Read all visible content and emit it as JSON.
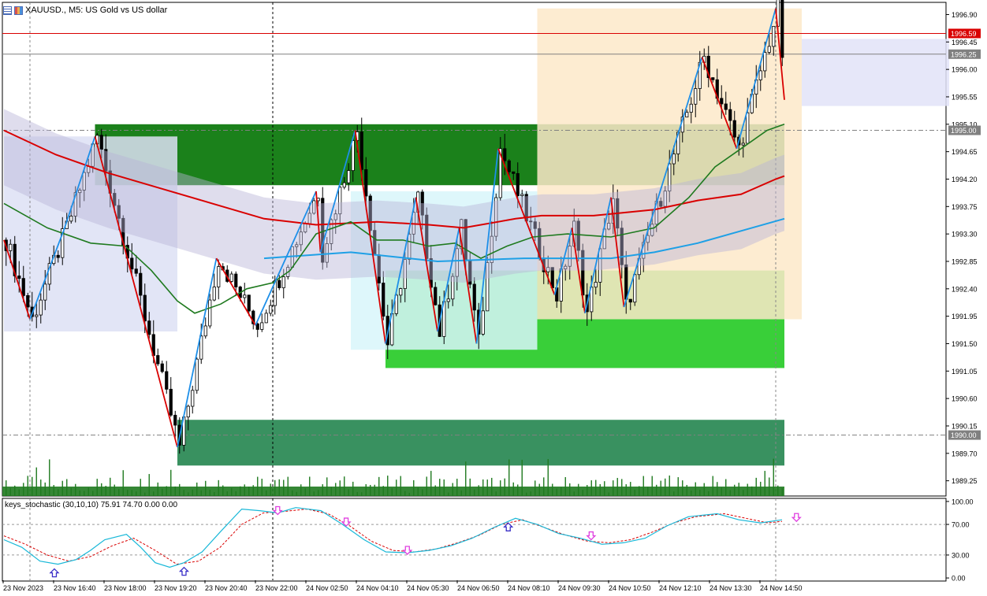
{
  "window": {
    "title": "XAUUSD., M5:  US Gold vs US dollar",
    "icons": [
      "chart-menu-icon",
      "indicators-icon"
    ]
  },
  "indicator": {
    "label": "keys_stochastic (30,10,10) 75.91 74.70 0.00 0.00"
  },
  "colors": {
    "ma_fast": "#1f7a1f",
    "ma_slow": "#d90000",
    "zigzag_up": "#1e8fe8",
    "zigzag_down": "#d90000",
    "stoch_main": "#19b8d8",
    "stoch_signal": "#d90000",
    "signal_up": "#3a2fc8",
    "signal_down": "#e040e0",
    "bid_line": "#d90000",
    "volume": "#1f7a1f"
  },
  "chart_data": [
    {
      "type": "candlestick",
      "symbol": "XAUUSD.",
      "timeframe": "M5",
      "ylim": [
        1989.0,
        1997.1
      ],
      "y_ticks": [
        "1996.90",
        "1996.45",
        "1996.00",
        "1995.55",
        "1995.10",
        "1994.65",
        "1994.20",
        "1993.75",
        "1993.30",
        "1992.85",
        "1992.40",
        "1991.95",
        "1991.50",
        "1991.05",
        "1990.60",
        "1990.15",
        "1989.70",
        "1989.25"
      ],
      "price_labels": [
        {
          "value": 1996.59,
          "text": "1996.59",
          "kind": "bid"
        },
        {
          "value": 1996.25,
          "text": "1996.25",
          "kind": "ask"
        },
        {
          "value": 1995.0,
          "text": "1995.00",
          "kind": "level"
        },
        {
          "value": 1990.0,
          "text": "1990.00",
          "kind": "level"
        }
      ],
      "x_labels": [
        "23 Nov 2023",
        "23 Nov 16:40",
        "23 Nov 18:00",
        "23 Nov 19:20",
        "23 Nov 20:40",
        "23 Nov 22:00",
        "24 Nov 02:50",
        "24 Nov 04:10",
        "24 Nov 05:30",
        "24 Nov 06:50",
        "24 Nov 08:10",
        "24 Nov 09:30",
        "24 Nov 10:50",
        "24 Nov 12:10",
        "24 Nov 13:30",
        "24 Nov 14:50"
      ],
      "bars": 180,
      "zigzag": [
        {
          "bar": 0,
          "price": 1993.2
        },
        {
          "bar": 6,
          "price": 1991.9
        },
        {
          "bar": 14,
          "price": 1993.4
        },
        {
          "bar": 21,
          "price": 1994.9
        },
        {
          "bar": 40,
          "price": 1989.8
        },
        {
          "bar": 49,
          "price": 1992.9
        },
        {
          "bar": 58,
          "price": 1991.8
        },
        {
          "bar": 72,
          "price": 1994.0
        },
        {
          "bar": 73,
          "price": 1993.0
        },
        {
          "bar": 81,
          "price": 1995.0
        },
        {
          "bar": 88,
          "price": 1991.5
        },
        {
          "bar": 95,
          "price": 1993.9
        },
        {
          "bar": 100,
          "price": 1991.7
        },
        {
          "bar": 105,
          "price": 1993.4
        },
        {
          "bar": 109,
          "price": 1991.5
        },
        {
          "bar": 114,
          "price": 1994.7
        },
        {
          "bar": 127,
          "price": 1992.3
        },
        {
          "bar": 131,
          "price": 1993.4
        },
        {
          "bar": 134,
          "price": 1992.0
        },
        {
          "bar": 140,
          "price": 1993.9
        },
        {
          "bar": 143,
          "price": 1992.1
        },
        {
          "bar": 161,
          "price": 1996.2
        },
        {
          "bar": 169,
          "price": 1994.7
        },
        {
          "bar": 178,
          "price": 1997.0
        },
        {
          "bar": 180,
          "price": 1995.5
        }
      ],
      "ma_fast": [
        [
          0,
          1993.8
        ],
        [
          10,
          1993.4
        ],
        [
          20,
          1993.15
        ],
        [
          28,
          1993.1
        ],
        [
          34,
          1992.7
        ],
        [
          40,
          1992.2
        ],
        [
          44,
          1992.0
        ],
        [
          50,
          1992.15
        ],
        [
          56,
          1992.4
        ],
        [
          62,
          1992.5
        ],
        [
          66,
          1992.7
        ],
        [
          72,
          1993.3
        ],
        [
          80,
          1993.5
        ],
        [
          86,
          1993.2
        ],
        [
          92,
          1993.2
        ],
        [
          98,
          1993.1
        ],
        [
          104,
          1993.15
        ],
        [
          110,
          1992.9
        ],
        [
          116,
          1993.1
        ],
        [
          122,
          1993.25
        ],
        [
          130,
          1993.3
        ],
        [
          140,
          1993.25
        ],
        [
          150,
          1993.4
        ],
        [
          158,
          1993.9
        ],
        [
          164,
          1994.4
        ],
        [
          170,
          1994.7
        ],
        [
          176,
          1995.0
        ],
        [
          180,
          1995.1
        ]
      ],
      "ma_slow": [
        [
          0,
          1995.0
        ],
        [
          12,
          1994.6
        ],
        [
          24,
          1994.3
        ],
        [
          36,
          1994.05
        ],
        [
          48,
          1993.8
        ],
        [
          60,
          1993.55
        ],
        [
          72,
          1993.45
        ],
        [
          86,
          1993.5
        ],
        [
          98,
          1993.45
        ],
        [
          106,
          1993.4
        ],
        [
          118,
          1993.55
        ],
        [
          124,
          1993.6
        ],
        [
          136,
          1993.6
        ],
        [
          150,
          1993.7
        ],
        [
          160,
          1993.85
        ],
        [
          170,
          1993.95
        ],
        [
          178,
          1994.2
        ],
        [
          180,
          1994.25
        ]
      ],
      "ma_cyan": [
        [
          60,
          1992.9
        ],
        [
          80,
          1993.0
        ],
        [
          100,
          1992.85
        ],
        [
          120,
          1992.9
        ],
        [
          140,
          1992.9
        ],
        [
          150,
          1993.0
        ],
        [
          160,
          1993.15
        ],
        [
          170,
          1993.35
        ],
        [
          180,
          1993.55
        ]
      ],
      "zones": [
        {
          "kind": "demand-strong",
          "x0": 21,
          "x1": 180,
          "y0": 1995.1,
          "y1": 1994.1,
          "color": "#0f7a0f"
        },
        {
          "kind": "demand-mid",
          "x0": 88,
          "x1": 180,
          "y0": 1992.7,
          "y1": 1991.1,
          "color": "#2ecc2e"
        },
        {
          "kind": "demand-deep",
          "x0": 40,
          "x1": 180,
          "y0": 1990.25,
          "y1": 1989.5,
          "color": "#2e8b57"
        },
        {
          "kind": "session-1",
          "x0": 0,
          "x1": 40,
          "y0": 1994.9,
          "y1": 1991.7,
          "color": "#dde0f5"
        },
        {
          "kind": "session-2",
          "x0": 80,
          "x1": 123,
          "y0": 1994.0,
          "y1": 1991.4,
          "color": "#d8f6fa"
        },
        {
          "kind": "session-3",
          "x0": 123,
          "x1": 184,
          "y0": 1997.0,
          "y1": 1991.9,
          "color": "#fde9c9"
        },
        {
          "kind": "session-4",
          "x0": 184,
          "x1": 218,
          "y0": 1996.5,
          "y1": 1995.4,
          "color": "#e2e3f8"
        }
      ]
    },
    {
      "type": "line",
      "name": "keys_stochastic (30,10,10)",
      "ylim": [
        -3,
        103
      ],
      "y_ticks": [
        "100.00",
        "70.00",
        "30.00",
        "0.00"
      ],
      "levels": [
        70,
        30
      ],
      "main": [
        [
          0,
          50
        ],
        [
          5,
          40
        ],
        [
          10,
          22
        ],
        [
          15,
          18
        ],
        [
          20,
          24
        ],
        [
          24,
          36
        ],
        [
          28,
          50
        ],
        [
          34,
          57
        ],
        [
          38,
          40
        ],
        [
          42,
          20
        ],
        [
          46,
          14
        ],
        [
          50,
          20
        ],
        [
          55,
          34
        ],
        [
          60,
          60
        ],
        [
          66,
          90
        ],
        [
          71,
          88
        ],
        [
          76,
          85
        ],
        [
          81,
          92
        ],
        [
          88,
          88
        ],
        [
          94,
          70
        ],
        [
          100,
          50
        ],
        [
          106,
          34
        ],
        [
          112,
          33
        ],
        [
          118,
          36
        ],
        [
          124,
          42
        ],
        [
          130,
          52
        ],
        [
          136,
          66
        ],
        [
          142,
          78
        ],
        [
          148,
          70
        ],
        [
          154,
          58
        ],
        [
          160,
          52
        ],
        [
          166,
          44
        ],
        [
          172,
          46
        ],
        [
          178,
          52
        ],
        [
          184,
          68
        ],
        [
          190,
          80
        ],
        [
          198,
          84
        ],
        [
          204,
          76
        ],
        [
          210,
          72
        ],
        [
          216,
          76
        ]
      ],
      "signal": [
        [
          0,
          55
        ],
        [
          6,
          44
        ],
        [
          12,
          30
        ],
        [
          18,
          22
        ],
        [
          24,
          28
        ],
        [
          30,
          42
        ],
        [
          36,
          52
        ],
        [
          42,
          36
        ],
        [
          48,
          18
        ],
        [
          54,
          22
        ],
        [
          60,
          40
        ],
        [
          66,
          70
        ],
        [
          72,
          85
        ],
        [
          78,
          87
        ],
        [
          84,
          90
        ],
        [
          90,
          84
        ],
        [
          96,
          68
        ],
        [
          102,
          48
        ],
        [
          108,
          36
        ],
        [
          114,
          34
        ],
        [
          120,
          38
        ],
        [
          126,
          46
        ],
        [
          132,
          56
        ],
        [
          138,
          70
        ],
        [
          144,
          76
        ],
        [
          150,
          66
        ],
        [
          156,
          56
        ],
        [
          162,
          48
        ],
        [
          168,
          46
        ],
        [
          174,
          50
        ],
        [
          180,
          60
        ],
        [
          186,
          72
        ],
        [
          192,
          80
        ],
        [
          200,
          84
        ],
        [
          206,
          78
        ],
        [
          212,
          72
        ],
        [
          216,
          74
        ]
      ],
      "signals": [
        {
          "index": 14,
          "kind": "up"
        },
        {
          "index": 50,
          "kind": "up"
        },
        {
          "index": 76,
          "kind": "down"
        },
        {
          "index": 95,
          "kind": "down"
        },
        {
          "index": 112,
          "kind": "down"
        },
        {
          "index": 140,
          "kind": "up"
        },
        {
          "index": 163,
          "kind": "down"
        },
        {
          "index": 220,
          "kind": "down"
        }
      ]
    }
  ]
}
